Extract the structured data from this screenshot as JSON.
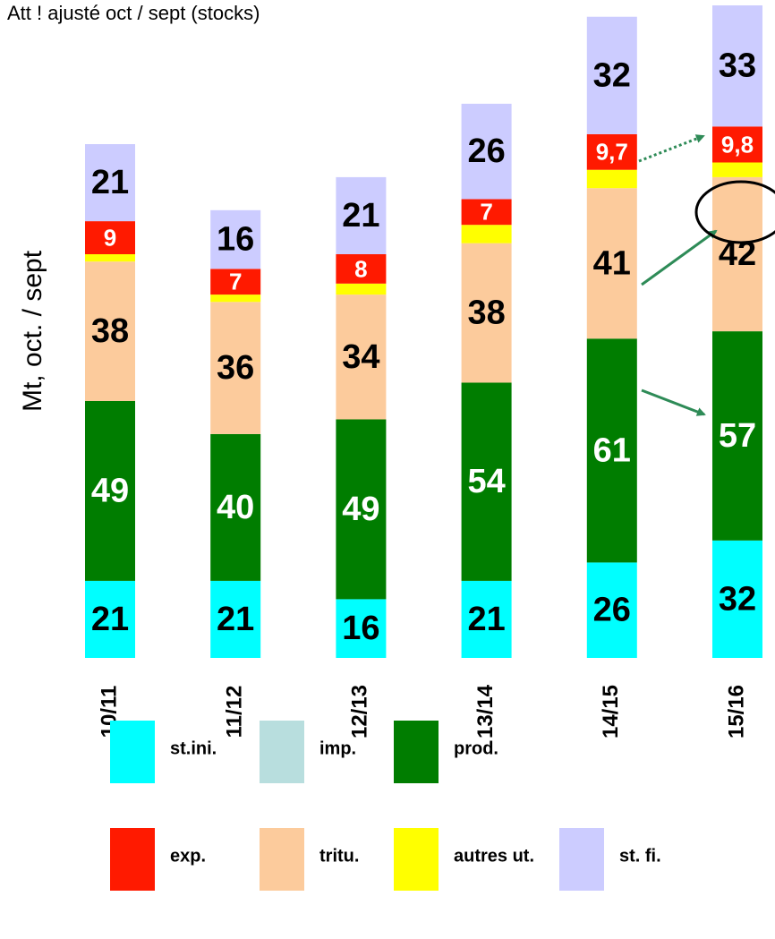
{
  "chart_data": {
    "type": "stacked_bar",
    "title": "Att ! ajusté oct / sept (stocks)",
    "y_label": "Mt, oct. / sept",
    "categories": [
      "10/11",
      "11/12",
      "12/13",
      "13/14",
      "14/15",
      "15/16"
    ],
    "series": [
      {
        "name": "st.ini.",
        "color": "#00ffff",
        "label_color": "#000000",
        "values": [
          21,
          21,
          16,
          21,
          26,
          32
        ]
      },
      {
        "name": "imp.",
        "color": "#b8dede",
        "label_color": "#000000",
        "data_labels": false,
        "values": [
          0,
          0,
          0,
          0,
          0,
          0
        ]
      },
      {
        "name": "prod.",
        "color": "#007d00",
        "label_color": "#ffffff",
        "values": [
          49,
          40,
          49,
          54,
          61,
          57
        ]
      },
      {
        "name": "tritu.",
        "color": "#fccb9c",
        "label_color": "#000000",
        "values": [
          38,
          36,
          34,
          38,
          41,
          42
        ]
      },
      {
        "name": "autres ut.",
        "color": "#ffff00",
        "label_color": "#000000",
        "data_labels": false,
        "values": [
          2,
          2,
          3,
          5,
          5,
          4
        ]
      },
      {
        "name": "exp.",
        "color": "#ff1a00",
        "label_color": "#ffffff",
        "values": [
          9,
          7,
          8,
          7,
          9.7,
          9.8
        ],
        "value_labels": [
          "9",
          "7",
          "8",
          "7",
          "9,7",
          "9,8"
        ]
      },
      {
        "name": "st. fi.",
        "color": "#ccccff",
        "label_color": "#000000",
        "values": [
          21,
          16,
          21,
          26,
          32,
          33
        ]
      }
    ]
  }
}
